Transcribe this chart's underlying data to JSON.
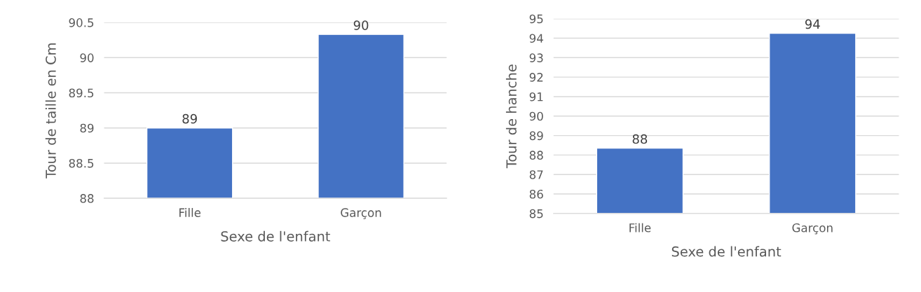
{
  "chart_data": [
    {
      "type": "bar",
      "categories": [
        "Fille",
        "Garçon"
      ],
      "values": [
        89.0,
        90.33
      ],
      "value_labels": [
        "89",
        "90"
      ],
      "color": "#4472c4",
      "xlabel": "Sexe de l'enfant",
      "ylabel": "Tour de taille en Cm",
      "ylim": [
        88,
        90.5
      ],
      "yticks": [
        88,
        {
          "value": 88.5,
          "label": "88.5"
        },
        89,
        {
          "value": 89.5,
          "label": "89.5"
        },
        90,
        {
          "value": 90.5,
          "label": "90.5"
        }
      ],
      "grid": "y"
    },
    {
      "type": "bar",
      "categories": [
        "Fille",
        "Garçon"
      ],
      "values": [
        88.35,
        94.25
      ],
      "value_labels": [
        "88",
        "94"
      ],
      "color": "#4472c4",
      "xlabel": "Sexe de l'enfant",
      "ylabel": "Tour de hanche",
      "ylim": [
        85,
        95
      ],
      "yticks": [
        85,
        86,
        87,
        88,
        89,
        90,
        91,
        92,
        93,
        94,
        95
      ],
      "grid": "y"
    }
  ]
}
